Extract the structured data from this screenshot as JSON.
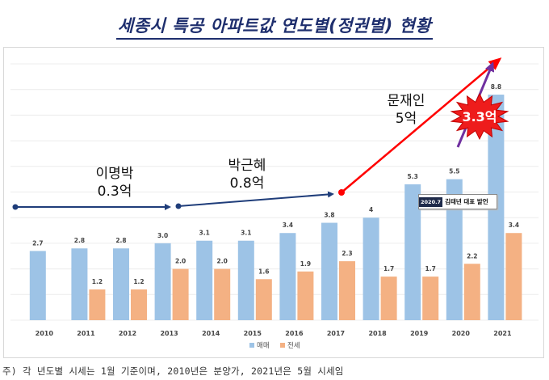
{
  "title": "세종시 특공 아파트값 연도별(정권별) 현황",
  "footnote": "주) 각 년도별 시세는 1월 기준이며, 2010년은 분양가, 2021년은 5월 시세임",
  "annotations": {
    "eras": [
      {
        "name": "이명박",
        "value": "0.3억"
      },
      {
        "name": "박근혜",
        "value": "0.8억"
      },
      {
        "name": "문재인",
        "value": "5억"
      }
    ],
    "burst": "3.3억",
    "event_date": "2020.7",
    "event_text": "김태년 대표 발언"
  },
  "colors": {
    "sale": "#9dc3e6",
    "jeonse": "#f4b183",
    "era_arrow": "#1f3d7a",
    "moon_arrow": "#ff0000",
    "burst_arrow": "#7030a0",
    "title": "#1f2f6e"
  },
  "chart_data": {
    "type": "bar",
    "title": "세종시 특공 아파트값 연도별(정권별) 현황",
    "categories": [
      "2010",
      "2011",
      "2012",
      "2013",
      "2014",
      "2015",
      "2016",
      "2017",
      "2018",
      "2019",
      "2020",
      "2021"
    ],
    "series": [
      {
        "name": "매매",
        "values": [
          2.7,
          2.8,
          2.8,
          3.0,
          3.1,
          3.1,
          3.4,
          3.8,
          4,
          5.3,
          5.5,
          8.8
        ]
      },
      {
        "name": "전세",
        "values": [
          null,
          1.2,
          1.2,
          2.0,
          2.0,
          1.6,
          1.9,
          2.3,
          1.7,
          1.7,
          2.2,
          3.4
        ]
      }
    ],
    "data_labels": {
      "매매": [
        "2.7",
        "2.8",
        "2.8",
        "3.0",
        "3.1",
        "3.1",
        "3.4",
        "3.8",
        "4",
        "5.3",
        "5.5",
        "8.8"
      ],
      "전세": [
        "",
        "1.2",
        "1.2",
        "2.0",
        "2.0",
        "1.6",
        "1.9",
        "2.3",
        "1.7",
        "1.7",
        "2.2",
        "3.4"
      ]
    },
    "ylim": [
      0,
      10
    ],
    "grid": true,
    "legend": "bottom-center"
  }
}
